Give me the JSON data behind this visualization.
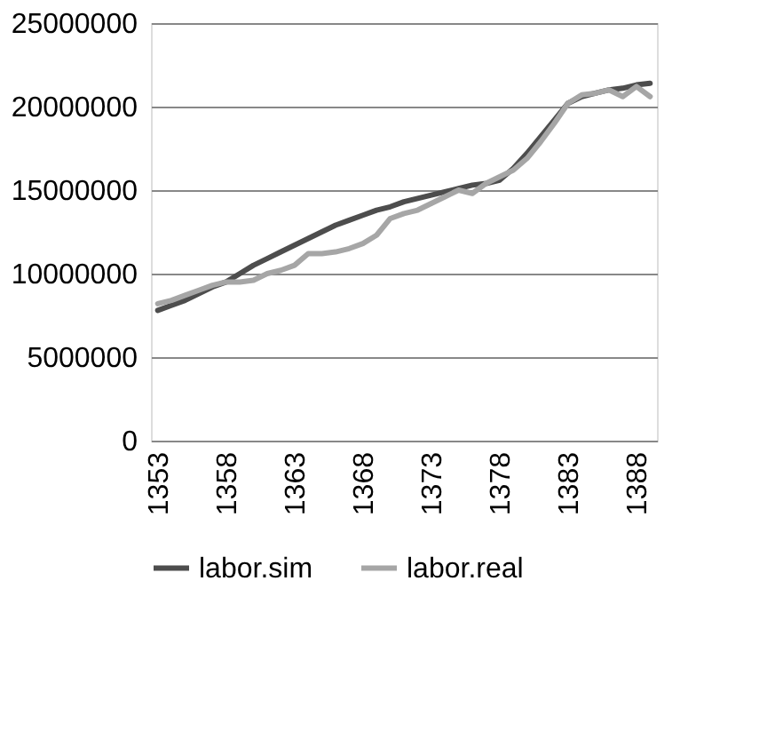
{
  "chart_data": {
    "type": "line",
    "categories": [
      "1353",
      null,
      null,
      null,
      null,
      "1358",
      null,
      null,
      null,
      null,
      "1363",
      null,
      null,
      null,
      null,
      "1368",
      null,
      null,
      null,
      null,
      "1373",
      null,
      null,
      null,
      null,
      "1378",
      null,
      null,
      null,
      null,
      "1383",
      null,
      null,
      null,
      null,
      "1388",
      null
    ],
    "series": [
      {
        "name": "labor.sim",
        "color": "#4d4d4d",
        "values": [
          7800000,
          8100000,
          8400000,
          8800000,
          9200000,
          9500000,
          10000000,
          10500000,
          10900000,
          11300000,
          11700000,
          12100000,
          12500000,
          12900000,
          13200000,
          13500000,
          13800000,
          14000000,
          14300000,
          14500000,
          14700000,
          14900000,
          15100000,
          15300000,
          15400000,
          15600000,
          16300000,
          17200000,
          18200000,
          19200000,
          20200000,
          20600000,
          20800000,
          21000000,
          21100000,
          21300000,
          21400000
        ]
      },
      {
        "name": "labor.real",
        "color": "#a6a6a6",
        "values": [
          8200000,
          8400000,
          8700000,
          9000000,
          9300000,
          9500000,
          9500000,
          9600000,
          10000000,
          10200000,
          10500000,
          11200000,
          11200000,
          11300000,
          11500000,
          11800000,
          12300000,
          13300000,
          13600000,
          13800000,
          14200000,
          14600000,
          15000000,
          14800000,
          15400000,
          15800000,
          16200000,
          16900000,
          17900000,
          19000000,
          20200000,
          20700000,
          20800000,
          21000000,
          20600000,
          21200000,
          20600000
        ]
      }
    ],
    "ylim": [
      0,
      25000000
    ],
    "yticks": [
      0,
      5000000,
      10000000,
      15000000,
      20000000,
      25000000
    ],
    "grid": "y",
    "legend": "bottom",
    "marker": "none",
    "line_style": "solid"
  }
}
